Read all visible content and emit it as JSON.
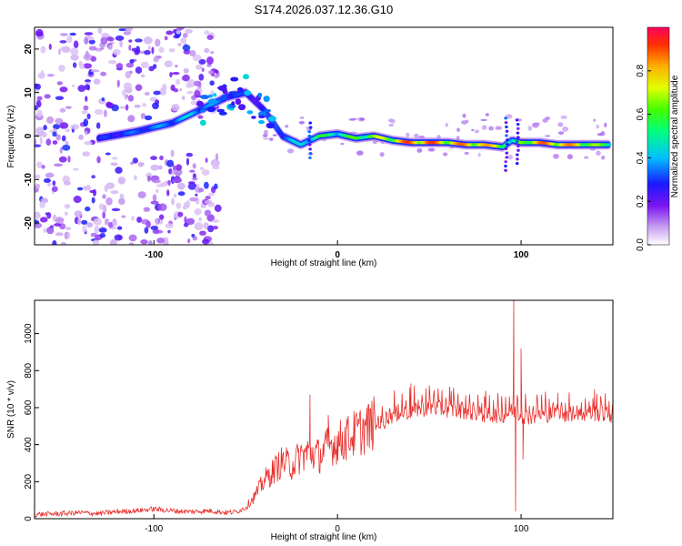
{
  "title": "S174.2026.037.12.36.G10",
  "chart_data": [
    {
      "type": "heatmap",
      "xlabel": "Height of straight line (km)",
      "ylabel": "Frequency (Hz)",
      "xlim": [
        -165,
        150
      ],
      "ylim": [
        -25,
        25
      ],
      "xticks": [
        -100,
        0,
        100
      ],
      "xtick_labels": [
        "-100",
        "0",
        "100"
      ],
      "yticks": [
        -20,
        -10,
        0,
        10,
        20
      ],
      "ytick_labels": [
        "-20",
        "-10",
        "0",
        "10",
        "20"
      ],
      "colorbar": {
        "label": "Normalized spectral amplitude",
        "range": [
          0,
          1
        ],
        "ticks": [
          0.0,
          0.2,
          0.4,
          0.6,
          0.8
        ],
        "tick_labels": [
          "0.0",
          "0.2",
          "0.4",
          "0.6",
          "0.8"
        ]
      },
      "ridge": {
        "x": [
          -130,
          -110,
          -90,
          -80,
          -70,
          -60,
          -50,
          -40,
          -30,
          -20,
          -10,
          0,
          10,
          20,
          30,
          40,
          50,
          60,
          70,
          80,
          90,
          95,
          100,
          110,
          120,
          130,
          140,
          148
        ],
        "freq": [
          -0.5,
          1,
          3,
          5,
          7,
          9,
          10,
          6,
          0,
          -2,
          0,
          0.5,
          -0.5,
          0,
          -1,
          -1.5,
          -1.5,
          -1.5,
          -2,
          -2,
          -2.5,
          -1,
          -1.5,
          -1.5,
          -2,
          -2,
          -2,
          -2
        ],
        "amplitude": [
          0.3,
          0.35,
          0.4,
          0.45,
          0.4,
          0.35,
          0.3,
          0.3,
          0.4,
          0.45,
          0.6,
          0.55,
          0.65,
          0.7,
          0.8,
          0.95,
          0.95,
          0.85,
          0.9,
          0.85,
          0.8,
          0.4,
          0.7,
          0.9,
          0.9,
          0.85,
          0.7,
          0.6
        ]
      }
    },
    {
      "type": "line",
      "xlabel": "Height of straight line (km)",
      "ylabel": "SNR (10 * v/v)",
      "xlim": [
        -165,
        150
      ],
      "ylim": [
        0,
        1180
      ],
      "xticks": [
        -100,
        0,
        100
      ],
      "xtick_labels": [
        "-100",
        "0",
        "100"
      ],
      "yticks": [
        0,
        200,
        400,
        600,
        800,
        1000
      ],
      "ytick_labels": [
        "0",
        "200",
        "400",
        "600",
        "800",
        "1000"
      ],
      "color": "#e8302c",
      "series": [
        {
          "name": "SNR",
          "x": [
            -165,
            -150,
            -140,
            -130,
            -120,
            -110,
            -100,
            -90,
            -80,
            -70,
            -60,
            -55,
            -50,
            -45,
            -40,
            -35,
            -30,
            -25,
            -20,
            -15,
            -10,
            -5,
            0,
            5,
            10,
            15,
            20,
            25,
            30,
            40,
            50,
            60,
            70,
            80,
            90,
            95,
            100,
            105,
            110,
            120,
            130,
            140,
            150
          ],
          "y": [
            20,
            25,
            30,
            25,
            35,
            40,
            50,
            40,
            35,
            40,
            30,
            35,
            60,
            120,
            200,
            250,
            300,
            280,
            330,
            350,
            330,
            380,
            400,
            420,
            450,
            470,
            500,
            520,
            560,
            580,
            600,
            590,
            580,
            560,
            560,
            580,
            560,
            550,
            560,
            570,
            560,
            570,
            560
          ],
          "spikes": [
            {
              "x": -15,
              "y": 670
            },
            {
              "x": -5,
              "y": 560
            },
            {
              "x": 5,
              "y": 540
            },
            {
              "x": 40,
              "y": 730
            },
            {
              "x": 50,
              "y": 720
            },
            {
              "x": 62,
              "y": 690
            },
            {
              "x": 80,
              "y": 660
            },
            {
              "x": 96,
              "y": 1180
            },
            {
              "x": 97,
              "y": 40
            },
            {
              "x": 100,
              "y": 920
            },
            {
              "x": 101,
              "y": 320
            },
            {
              "x": 120,
              "y": 680
            },
            {
              "x": 140,
              "y": 700
            }
          ]
        }
      ]
    }
  ]
}
